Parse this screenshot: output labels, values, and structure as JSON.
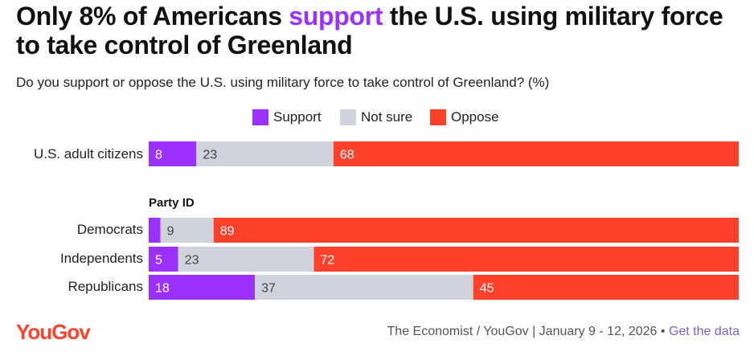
{
  "title_before": "Only 8% of Americans ",
  "title_highlight": "support",
  "title_after": " the U.S. using military force to take control of Greenland",
  "subtitle": "Do you support or oppose the U.S. using military force to take control of Greenland? (%)",
  "legend": [
    {
      "label": "Support",
      "color": "#9b30ff"
    },
    {
      "label": "Not sure",
      "color": "#d1d3dc"
    },
    {
      "label": "Oppose",
      "color": "#ff412c"
    }
  ],
  "group_label": "Party ID",
  "footer": {
    "logo": "YouGov",
    "source": "The Economist / YouGov | January 9 - 12, 2026 • ",
    "link": "Get the data"
  },
  "chart_data": {
    "type": "bar",
    "orientation": "horizontal",
    "stacked": true,
    "categories": [
      "U.S. adult citizens",
      "Democrats",
      "Independents",
      "Republicans"
    ],
    "series": [
      {
        "name": "Support",
        "values": [
          8,
          2,
          5,
          18
        ],
        "labels": [
          "8",
          "",
          "5",
          "18"
        ]
      },
      {
        "name": "Not sure",
        "values": [
          23,
          9,
          23,
          37
        ],
        "labels": [
          "23",
          "9",
          "23",
          "37"
        ]
      },
      {
        "name": "Oppose",
        "values": [
          68,
          89,
          72,
          45
        ],
        "labels": [
          "68",
          "89",
          "72",
          "45"
        ]
      }
    ],
    "xlim": [
      0,
      100
    ],
    "grid": false,
    "legend_position": "top-center"
  }
}
